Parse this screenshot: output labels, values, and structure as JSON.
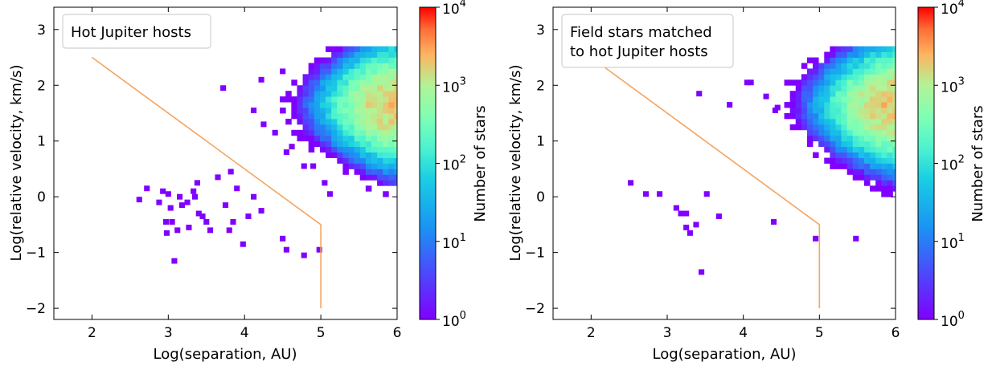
{
  "chart_data": [
    {
      "type": "heatmap",
      "title": "",
      "legend_label": "Hot Jupiter hosts",
      "xlabel": "Log(separation, AU)",
      "ylabel": "Log(relative velocity, km/s)",
      "xlim": [
        1.5,
        6.0
      ],
      "ylim": [
        -2.2,
        3.4
      ],
      "xticks": [
        "2",
        "3",
        "4",
        "5",
        "6"
      ],
      "yticks": [
        "−2",
        "−1",
        "0",
        "1",
        "2",
        "3"
      ],
      "colorbar": {
        "label": "Number of stars",
        "scale": "log",
        "ticks": [
          "10",
          "10",
          "10",
          "10",
          "10"
        ],
        "exponents": [
          "0",
          "1",
          "2",
          "3",
          "4"
        ],
        "range": [
          1,
          10000
        ]
      },
      "boundary_line": {
        "color": "#f4a460",
        "x": [
          2.0,
          5.0,
          5.0
        ],
        "y": [
          2.5,
          -0.5,
          -2.0
        ]
      },
      "sparse_cells": [
        [
          2.62,
          -0.05
        ],
        [
          2.72,
          0.15
        ],
        [
          2.88,
          -0.1
        ],
        [
          2.93,
          0.1
        ],
        [
          3.0,
          0.05
        ],
        [
          3.03,
          -0.2
        ],
        [
          2.97,
          -0.45
        ],
        [
          3.05,
          -0.45
        ],
        [
          2.98,
          -0.65
        ],
        [
          3.12,
          -0.6
        ],
        [
          3.08,
          -1.15
        ],
        [
          3.15,
          0.0
        ],
        [
          3.18,
          -0.15
        ],
        [
          3.25,
          -0.1
        ],
        [
          3.33,
          0.1
        ],
        [
          3.38,
          0.25
        ],
        [
          3.35,
          0.0
        ],
        [
          3.4,
          -0.3
        ],
        [
          3.45,
          -0.35
        ],
        [
          3.5,
          -0.45
        ],
        [
          3.55,
          -0.6
        ],
        [
          3.27,
          -0.55
        ],
        [
          3.65,
          0.35
        ],
        [
          3.75,
          -0.15
        ],
        [
          3.8,
          -0.6
        ],
        [
          3.85,
          -0.45
        ],
        [
          3.9,
          0.15
        ],
        [
          3.98,
          -0.85
        ],
        [
          4.05,
          -0.35
        ],
        [
          4.12,
          0.0
        ],
        [
          4.22,
          -0.25
        ],
        [
          3.82,
          0.45
        ],
        [
          4.5,
          -0.75
        ],
        [
          4.55,
          -0.95
        ],
        [
          4.78,
          -1.05
        ],
        [
          4.98,
          -0.95
        ],
        [
          3.72,
          1.95
        ],
        [
          4.22,
          2.1
        ],
        [
          4.5,
          2.25
        ],
        [
          4.12,
          1.55
        ],
        [
          4.25,
          1.3
        ],
        [
          4.4,
          1.15
        ],
        [
          4.55,
          0.8
        ],
        [
          4.62,
          0.9
        ],
        [
          4.78,
          0.55
        ],
        [
          4.9,
          0.55
        ],
        [
          5.05,
          0.25
        ],
        [
          5.12,
          0.05
        ]
      ],
      "dense_core": {
        "center_x": 5.95,
        "center_y": 1.65,
        "peak_count": 2000
      }
    },
    {
      "type": "heatmap",
      "title": "",
      "legend_label_lines": [
        "Field stars matched",
        "to hot Jupiter hosts"
      ],
      "xlabel": "Log(separation, AU)",
      "ylabel": "Log(relative velocity, km/s)",
      "xlim": [
        1.5,
        6.0
      ],
      "ylim": [
        -2.2,
        3.4
      ],
      "xticks": [
        "2",
        "3",
        "4",
        "5",
        "6"
      ],
      "yticks": [
        "−2",
        "−1",
        "0",
        "1",
        "2",
        "3"
      ],
      "colorbar": {
        "label": "Number of stars",
        "scale": "log",
        "ticks": [
          "10",
          "10",
          "10",
          "10",
          "10"
        ],
        "exponents": [
          "0",
          "1",
          "2",
          "3",
          "4"
        ],
        "range": [
          1,
          10000
        ]
      },
      "boundary_line": {
        "color": "#f4a460",
        "x": [
          2.0,
          5.0,
          5.0
        ],
        "y": [
          2.5,
          -0.5,
          -2.0
        ]
      },
      "sparse_cells": [
        [
          2.52,
          0.25
        ],
        [
          2.72,
          0.05
        ],
        [
          2.9,
          0.05
        ],
        [
          3.12,
          -0.2
        ],
        [
          3.18,
          -0.3
        ],
        [
          3.25,
          -0.3
        ],
        [
          3.25,
          -0.55
        ],
        [
          3.3,
          -0.65
        ],
        [
          3.38,
          -0.5
        ],
        [
          3.45,
          -1.35
        ],
        [
          3.52,
          0.05
        ],
        [
          3.68,
          -0.35
        ],
        [
          4.4,
          -0.45
        ],
        [
          4.95,
          -0.75
        ],
        [
          5.48,
          -0.75
        ],
        [
          3.42,
          1.85
        ],
        [
          3.82,
          1.65
        ],
        [
          4.05,
          2.05
        ],
        [
          4.1,
          2.05
        ],
        [
          4.3,
          1.8
        ],
        [
          4.42,
          1.55
        ],
        [
          4.45,
          1.6
        ]
      ],
      "dense_core": {
        "center_x": 5.95,
        "center_y": 1.65,
        "peak_count": 2000
      }
    }
  ]
}
